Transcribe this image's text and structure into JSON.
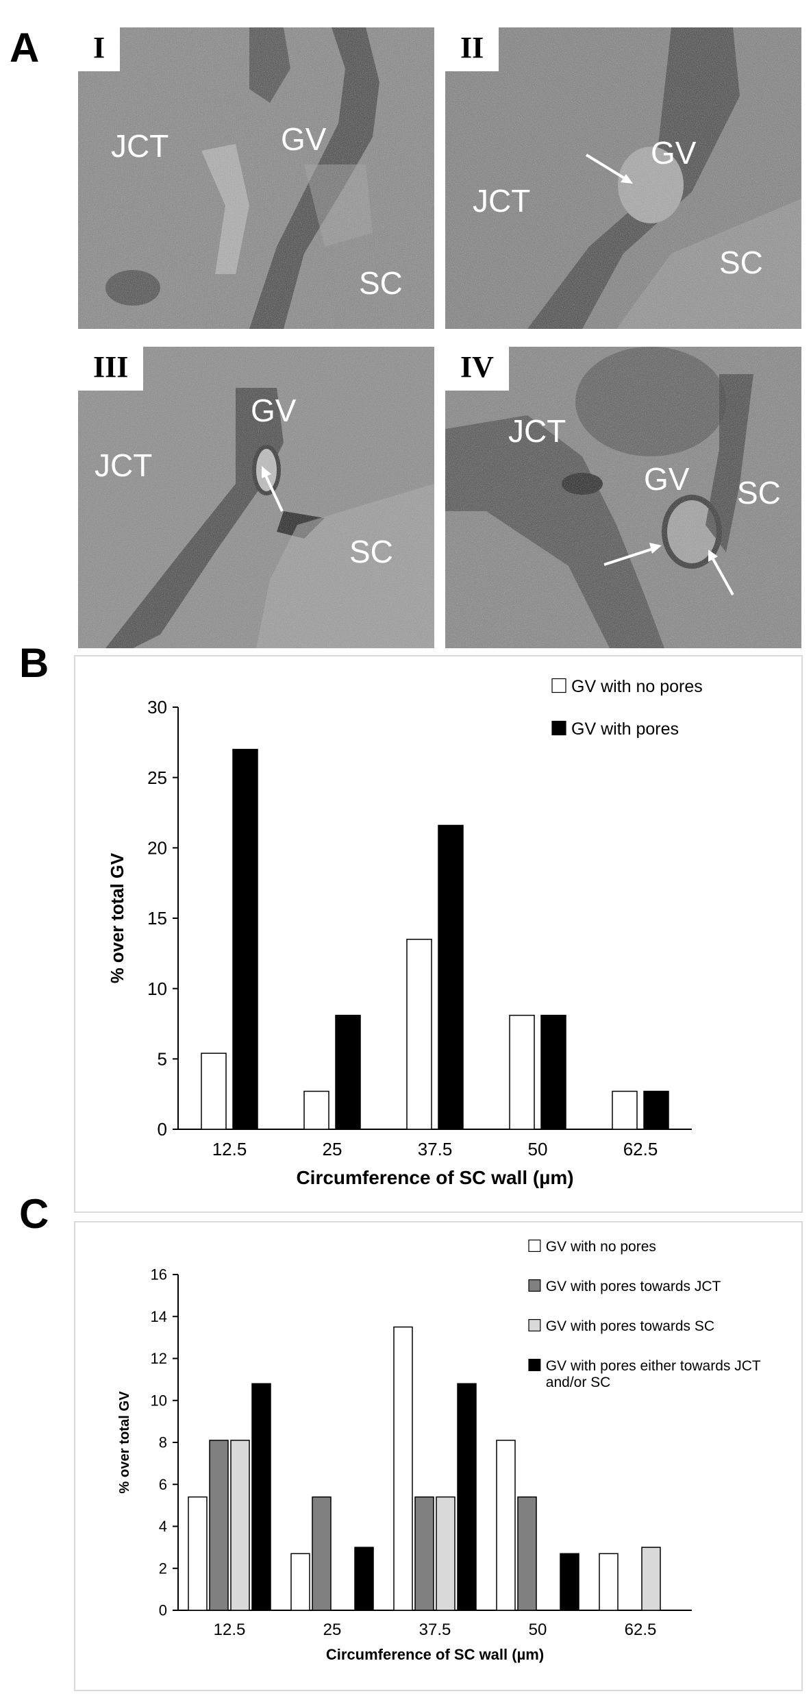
{
  "panels": {
    "a": {
      "letter": "A"
    },
    "b": {
      "letter": "B"
    },
    "c": {
      "letter": "C"
    }
  },
  "micrographs": [
    {
      "roman": "I",
      "labels": [
        "JCT",
        "GV",
        "SC"
      ],
      "arrows": 0
    },
    {
      "roman": "II",
      "labels": [
        "JCT",
        "GV",
        "SC"
      ],
      "arrows": 1
    },
    {
      "roman": "III",
      "labels": [
        "JCT",
        "GV",
        "SC"
      ],
      "arrows": 1
    },
    {
      "roman": "IV",
      "labels": [
        "JCT",
        "GV",
        "SC"
      ],
      "arrows": 2
    }
  ],
  "chart_data": [
    {
      "type": "bar",
      "panel": "B",
      "categories": [
        "12.5",
        "25",
        "37.5",
        "50",
        "62.5"
      ],
      "series": [
        {
          "name": "GV with no pores",
          "values": [
            5.4,
            2.7,
            13.5,
            8.1,
            2.7
          ],
          "color": "#ffffff"
        },
        {
          "name": "GV with pores",
          "values": [
            27.0,
            8.1,
            21.6,
            8.1,
            2.7
          ],
          "color": "#000000"
        }
      ],
      "xlabel": "Circumference of SC wall (µm)",
      "ylabel": "% over total GV",
      "ylim": [
        0,
        30
      ],
      "yticks": [
        "0",
        "5",
        "10",
        "15",
        "20",
        "25",
        "30"
      ],
      "grid": false,
      "legend": "top-right"
    },
    {
      "type": "bar",
      "panel": "C",
      "categories": [
        "12.5",
        "25",
        "37.5",
        "50",
        "62.5"
      ],
      "series": [
        {
          "name": "GV with no pores",
          "values": [
            5.4,
            2.7,
            13.5,
            8.1,
            2.7
          ],
          "color": "#ffffff"
        },
        {
          "name": "GV with pores towards JCT",
          "values": [
            8.1,
            5.4,
            5.4,
            5.4,
            0
          ],
          "color": "#808080"
        },
        {
          "name": "GV with pores towards SC",
          "values": [
            8.1,
            0,
            5.4,
            0,
            3.0
          ],
          "color": "#d9d9d9"
        },
        {
          "name": "GV with pores either towards JCT and/or SC",
          "values": [
            10.8,
            3.0,
            10.8,
            2.7,
            0
          ],
          "color": "#000000"
        }
      ],
      "xlabel": "Circumference of SC wall (µm)",
      "ylabel": "% over total GV",
      "ylim": [
        0,
        16
      ],
      "yticks": [
        "0",
        "2",
        "4",
        "6",
        "8",
        "10",
        "12",
        "14",
        "16"
      ],
      "grid": false,
      "legend": "top-right"
    }
  ]
}
